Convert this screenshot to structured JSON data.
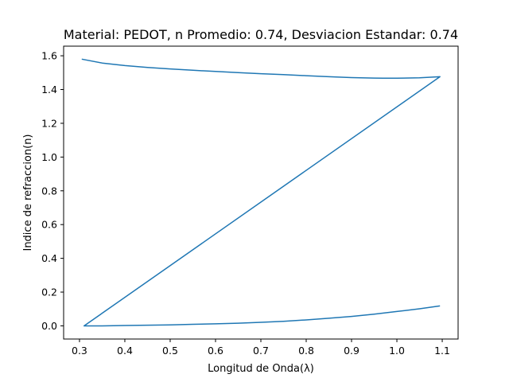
{
  "chart_data": {
    "type": "line",
    "title": "Material: PEDOT, n Promedio: 0.74, Desviacion Estandar: 0.74",
    "xlabel": "Longitud de Onda(λ)",
    "ylabel": "Indice de refraccion(n)",
    "xlim": [
      0.265,
      1.135
    ],
    "ylim": [
      -0.078,
      1.657
    ],
    "xticks": [
      "0.3",
      "0.4",
      "0.5",
      "0.6",
      "0.7",
      "0.8",
      "0.9",
      "1.0",
      "1.1"
    ],
    "yticks": [
      "0.0",
      "0.2",
      "0.4",
      "0.6",
      "0.8",
      "1.0",
      "1.2",
      "1.4",
      "1.6"
    ],
    "grid": false,
    "legend": "none",
    "line_color": "#1f77b4",
    "series": [
      {
        "x": [
          0.305,
          0.35,
          0.4,
          0.45,
          0.5,
          0.55,
          0.6,
          0.65,
          0.7,
          0.75,
          0.8,
          0.85,
          0.9,
          0.95,
          0.97,
          1.0,
          1.05,
          1.095,
          0.31,
          0.35,
          0.4,
          0.45,
          0.5,
          0.55,
          0.6,
          0.65,
          0.7,
          0.75,
          0.8,
          0.85,
          0.9,
          0.95,
          1.0,
          1.05,
          1.095
        ],
        "y": [
          1.58,
          1.557,
          1.542,
          1.531,
          1.522,
          1.514,
          1.507,
          1.5,
          1.494,
          1.488,
          1.482,
          1.476,
          1.471,
          1.468,
          1.467,
          1.467,
          1.47,
          1.476,
          0.0,
          0.0,
          0.002,
          0.004,
          0.006,
          0.009,
          0.012,
          0.016,
          0.021,
          0.027,
          0.035,
          0.045,
          0.056,
          0.069,
          0.085,
          0.101,
          0.118
        ]
      }
    ]
  }
}
